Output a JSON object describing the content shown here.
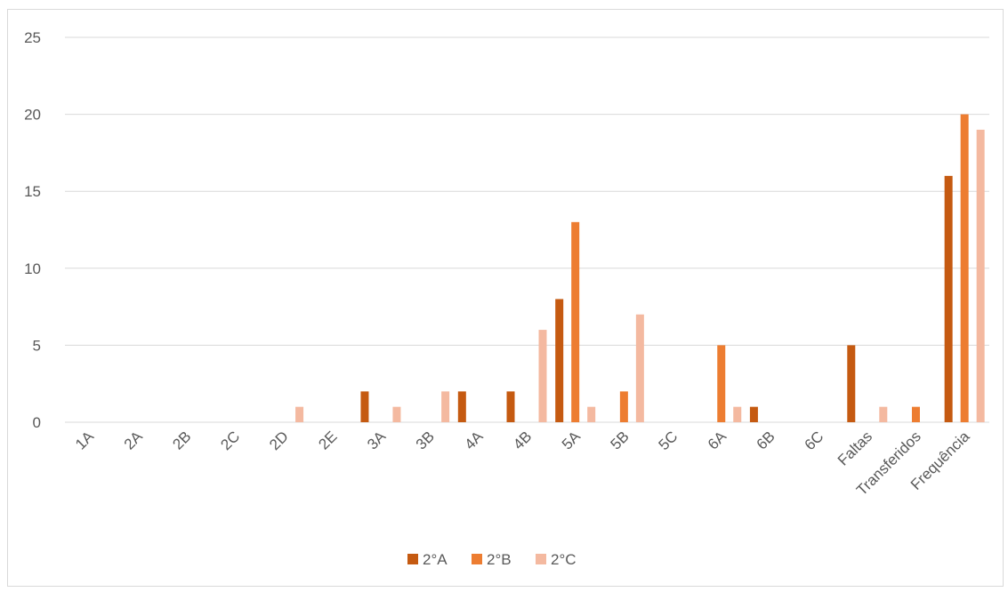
{
  "chart_data": {
    "type": "bar",
    "title": "",
    "xlabel": "",
    "ylabel": "",
    "ylim": [
      0,
      25
    ],
    "yticks": [
      0,
      5,
      10,
      15,
      20,
      25
    ],
    "grid": "horizontal",
    "legend_position": "bottom",
    "categories": [
      "1A",
      "2A",
      "2B",
      "2C",
      "2D",
      "2E",
      "3A",
      "3B",
      "4A",
      "4B",
      "5A",
      "5B",
      "5C",
      "6A",
      "6B",
      "6C",
      "Faltas",
      "Transferidos",
      "Frequência"
    ],
    "series": [
      {
        "name": "2°A",
        "color": "#c55a11",
        "values": [
          0,
          0,
          0,
          0,
          0,
          0,
          2,
          0,
          2,
          2,
          8,
          0,
          0,
          0,
          1,
          0,
          5,
          0,
          16
        ]
      },
      {
        "name": "2°B",
        "color": "#ed7d31",
        "values": [
          0,
          0,
          0,
          0,
          0,
          0,
          0,
          0,
          0,
          0,
          13,
          2,
          0,
          5,
          0,
          0,
          0,
          1,
          20
        ]
      },
      {
        "name": "2°C",
        "color": "#f4b9a0",
        "values": [
          0,
          0,
          0,
          0,
          1,
          0,
          1,
          2,
          0,
          6,
          1,
          7,
          0,
          1,
          0,
          0,
          1,
          0,
          19
        ]
      }
    ]
  }
}
